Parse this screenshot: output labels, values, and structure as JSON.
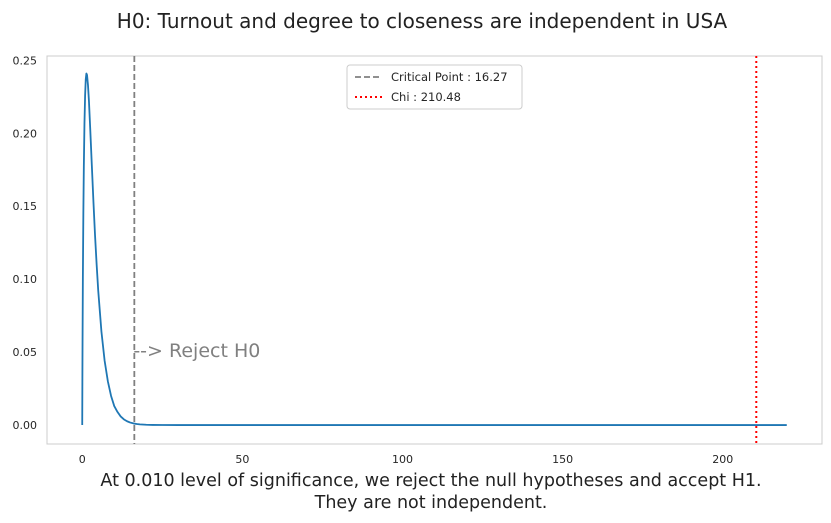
{
  "chart_data": {
    "type": "line",
    "title": "H0: Turnout and degree to closeness are independent in USA",
    "xlabel_lines": [
      "At 0.010 level of significance, we reject the null hypotheses and accept H1.",
      "They are not independent."
    ],
    "ylabel": "",
    "xlim": [
      -11,
      231
    ],
    "ylim": [
      -0.013,
      0.253
    ],
    "x_ticks": [
      0,
      50,
      100,
      150,
      200
    ],
    "y_ticks": [
      0.0,
      0.05,
      0.1,
      0.15,
      0.2,
      0.25
    ],
    "x_tick_labels": [
      "0",
      "50",
      "100",
      "150",
      "200"
    ],
    "y_tick_labels": [
      "0.00",
      "0.05",
      "0.10",
      "0.15",
      "0.20",
      "0.25"
    ],
    "grid": false,
    "legend_position": "upper center",
    "series": [
      {
        "kind": "curve",
        "color": "#1f77b4",
        "points": [
          [
            0,
            0.0
          ],
          [
            0.05,
            0.032
          ],
          [
            0.1,
            0.058
          ],
          [
            0.2,
            0.101
          ],
          [
            0.35,
            0.145
          ],
          [
            0.5,
            0.177
          ],
          [
            0.7,
            0.207
          ],
          [
            0.9,
            0.226
          ],
          [
            1.1,
            0.237
          ],
          [
            1.3,
            0.241
          ],
          [
            1.5,
            0.24
          ],
          [
            1.8,
            0.233
          ],
          [
            2.1,
            0.222
          ],
          [
            2.5,
            0.203
          ],
          [
            3.0,
            0.178
          ],
          [
            3.5,
            0.153
          ],
          [
            4.0,
            0.13
          ],
          [
            4.5,
            0.11
          ],
          [
            5.0,
            0.092
          ],
          [
            6.0,
            0.064
          ],
          [
            7.0,
            0.044
          ],
          [
            8.0,
            0.03
          ],
          [
            9.0,
            0.02
          ],
          [
            10.0,
            0.013
          ],
          [
            11.0,
            0.009
          ],
          [
            12.0,
            0.0059
          ],
          [
            13.0,
            0.0039
          ],
          [
            14.0,
            0.0026
          ],
          [
            15.0,
            0.0017
          ],
          [
            16.0,
            0.0011
          ],
          [
            17.0,
            0.0007
          ],
          [
            18.0,
            0.00045
          ],
          [
            20.0,
            0.00018
          ],
          [
            22.0,
            7e-05
          ],
          [
            25.0,
            1e-05
          ],
          [
            30.0,
            0.0
          ],
          [
            60.0,
            0.0
          ],
          [
            100.0,
            0.0
          ],
          [
            150.0,
            0.0
          ],
          [
            200.0,
            0.0
          ],
          [
            220.0,
            0.0
          ]
        ]
      }
    ],
    "vlines": [
      {
        "label": "Critical Point : 16.27",
        "x": 16.27,
        "color": "#808080",
        "style": "dashed"
      },
      {
        "label": "Chi : 210.48",
        "x": 210.48,
        "color": "#ff0000",
        "style": "dotted"
      }
    ],
    "annotation": {
      "text": "--> Reject H0",
      "x": 16.27,
      "y": 0.05,
      "color": "#808080"
    }
  }
}
